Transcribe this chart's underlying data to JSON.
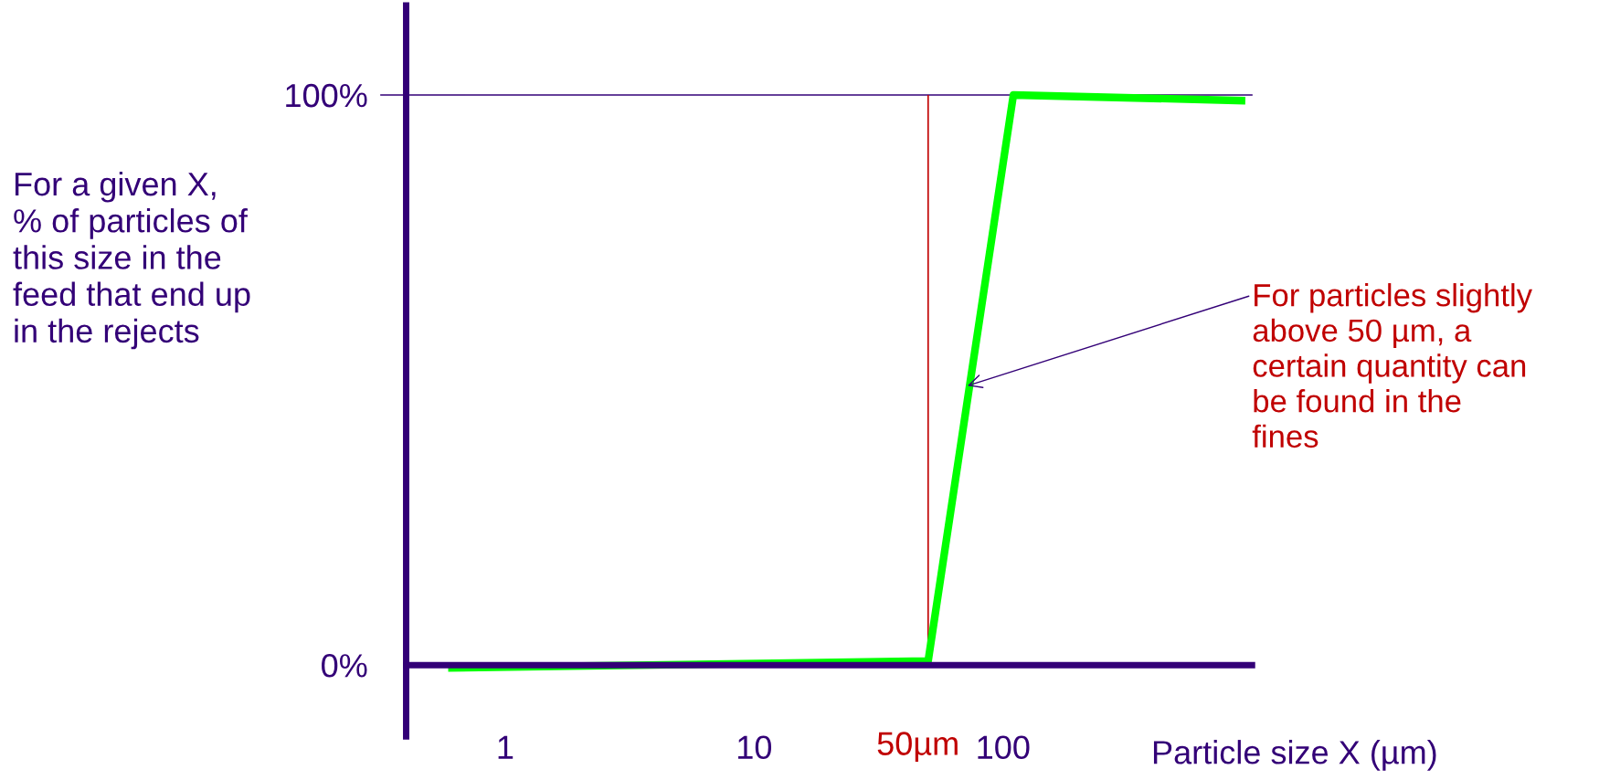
{
  "chart_data": {
    "type": "line",
    "xlabel": "Particle size X (µm)",
    "ylabel": "For a given X,\n% of particles of\nthis size in the\nfeed that end up\nin the rejects",
    "log": "x",
    "xlim": [
      0.4,
      1000
    ],
    "xticks": [
      1,
      10,
      100
    ],
    "ylim": [
      -12.5,
      115.7
    ],
    "yticks": [
      {
        "value": 0,
        "label": "0%"
      },
      {
        "value": 100,
        "label": "100%"
      }
    ],
    "x": [
      0.59,
      50,
      110,
      940
    ],
    "series": [
      {
        "color": "#00ff00",
        "values": [
          -0.5,
          0.7,
          100,
          99
        ]
      }
    ],
    "ref_lines": [
      {
        "axis": "y",
        "value": 100,
        "color": "#330077"
      },
      {
        "axis": "x",
        "value": 50,
        "label": "50µm",
        "color": "#c00000"
      }
    ],
    "annotations": [
      {
        "text": "For particles slightly\nabove 50 µm, a\ncertain quantity can\nbe found in the\nfines",
        "x": 72,
        "y": 49
      }
    ],
    "grid": false,
    "legend": false,
    "marker": "none",
    "line_style": "solid"
  }
}
